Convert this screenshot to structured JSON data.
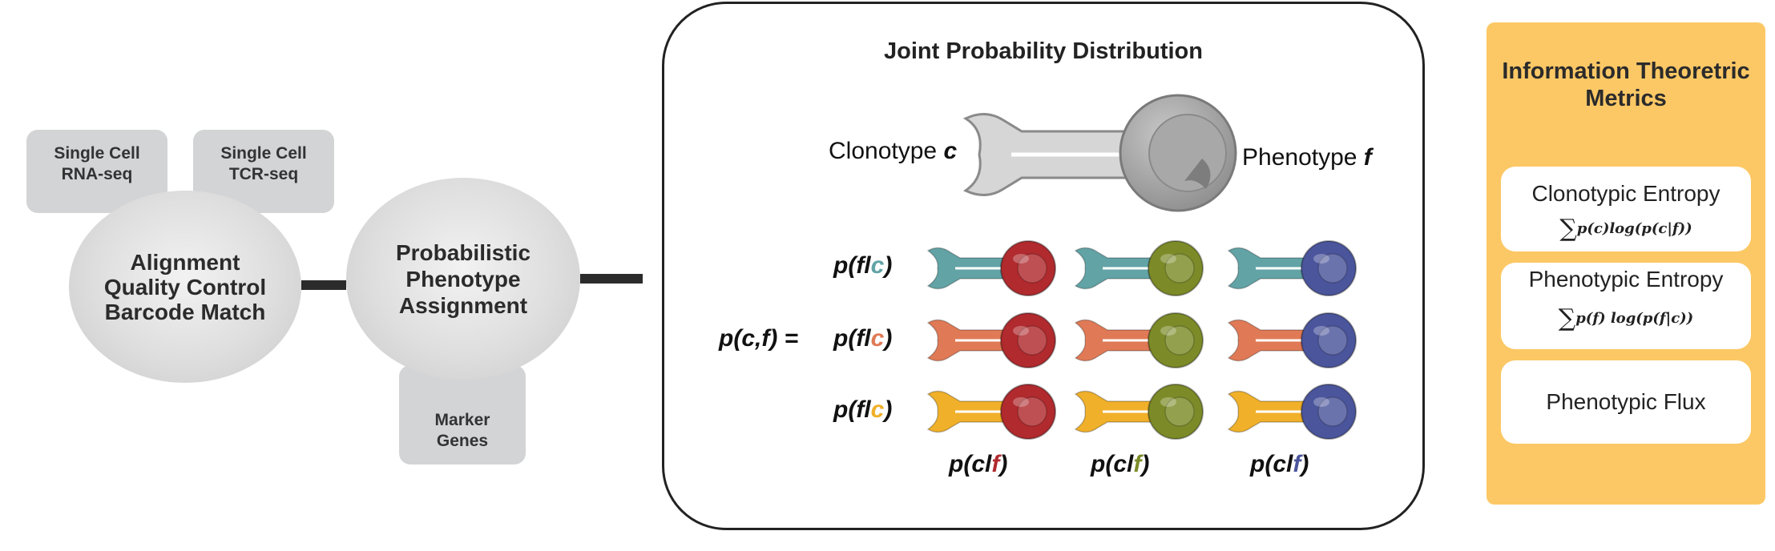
{
  "pipeline": {
    "tab_rna": "Single Cell\nRNA-seq",
    "tab_tcr": "Single Cell\nTCR-seq",
    "alignment": "Alignment\nQuality Control\nBarcode Match",
    "assignment": "Probabilistic\nPhenotype\nAssignment",
    "tab_marker": "Marker\nGenes"
  },
  "jpd": {
    "title": "Joint Probability Distribution",
    "clonotype_word": "Clonotype",
    "clonotype_var": "c",
    "phenotype_word": "Phenotype",
    "phenotype_var": "f",
    "joint_label": "p(c,f) =",
    "row_prefix": "p(fl",
    "row_suffix": ")",
    "col_prefix": "p(cl",
    "col_suffix": ")",
    "row_var": "c",
    "col_var": "f"
  },
  "colors": {
    "clonotype_rows": [
      "#62a3a6",
      "#e07a56",
      "#f0b02a"
    ],
    "phenotype_cols": [
      "#b02a2e",
      "#7c8b28",
      "#4b559c"
    ],
    "legend_gray_stem": "#cfcfcf",
    "legend_gray_head": "#a9a9a9",
    "panel_yellow": "#fcc865"
  },
  "metrics": {
    "title": "Information Theoretric\nMetrics",
    "cards": [
      {
        "name": "Clonotypic Entropy",
        "formula": "p(c)log(p(c|f))"
      },
      {
        "name": "Phenotypic Entropy",
        "formula": "p(f) log(p(f|c))"
      },
      {
        "name": "Phenotypic Flux",
        "formula": ""
      }
    ],
    "sum_symbol": "∑"
  }
}
